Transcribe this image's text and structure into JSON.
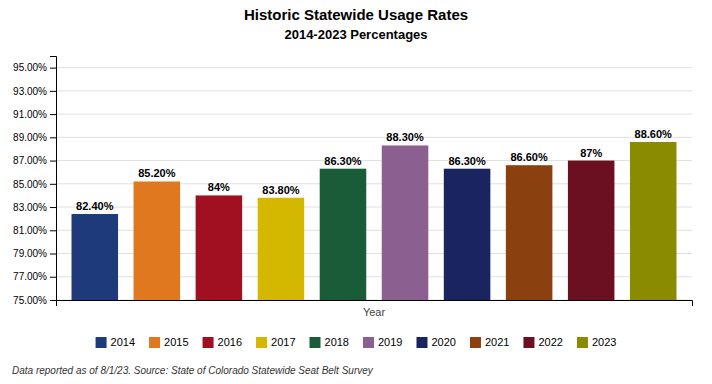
{
  "chart_data": {
    "type": "bar",
    "title": "Historic Statewide Usage Rates",
    "subtitle": "2014-2023 Percentages",
    "x_label": "Year",
    "categories": [
      "2014",
      "2015",
      "2016",
      "2017",
      "2018",
      "2019",
      "2020",
      "2021",
      "2022",
      "2023"
    ],
    "values": [
      82.4,
      85.2,
      84.0,
      83.8,
      86.3,
      88.3,
      86.3,
      86.6,
      87.0,
      88.6
    ],
    "value_labels": [
      "82.40%",
      "85.20%",
      "84%",
      "83.80%",
      "86.30%",
      "88.30%",
      "86.30%",
      "86.60%",
      "87%",
      "88.60%"
    ],
    "colors": [
      "#1F3A7A",
      "#E07820",
      "#A01020",
      "#D4B800",
      "#1A5C38",
      "#8B6090",
      "#1A2560",
      "#8B4010",
      "#6B1020",
      "#8B8B00"
    ],
    "ylim": [
      75.0,
      96.0
    ],
    "yticks": [
      {
        "value": 75.0,
        "label": "75.00%"
      },
      {
        "value": 77.0,
        "label": "77.00%"
      },
      {
        "value": 79.0,
        "label": "79.00%"
      },
      {
        "value": 81.0,
        "label": "81.00%"
      },
      {
        "value": 83.0,
        "label": "83.00%"
      },
      {
        "value": 85.0,
        "label": "85.00%"
      },
      {
        "value": 87.0,
        "label": "87.00%"
      },
      {
        "value": 89.0,
        "label": "89.00%"
      },
      {
        "value": 91.0,
        "label": "91.00%"
      },
      {
        "value": 93.0,
        "label": "93.00%"
      },
      {
        "value": 95.0,
        "label": "95.00%"
      }
    ],
    "grid": true,
    "data_labels": true,
    "tick_labels": "y",
    "legend": "bottom",
    "annotations": [
      "Data reported as of 8/1/23. Source: State of Colorado Statewide Seat Belt Survey"
    ]
  }
}
